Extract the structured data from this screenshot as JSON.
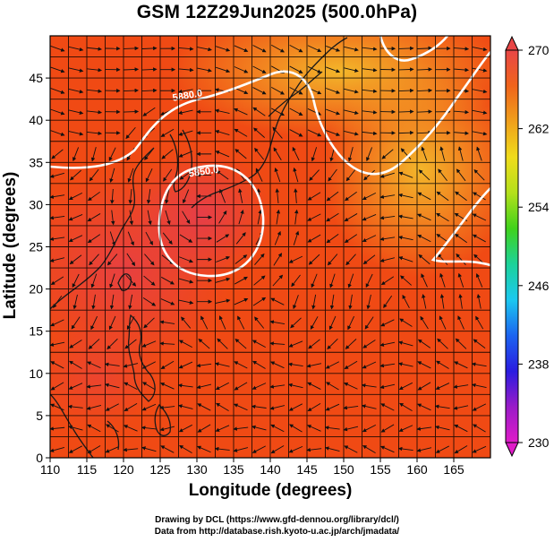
{
  "title": "GSM 12Z29Jun2025 (500.0hPa)",
  "map": {
    "xlabel": "Longitude (degrees)",
    "ylabel": "Latitude  (degrees)",
    "lon_range": [
      110,
      170
    ],
    "lat_range": [
      0,
      50
    ],
    "x_ticks": [
      110,
      115,
      120,
      125,
      130,
      135,
      140,
      145,
      150,
      155,
      160,
      165
    ],
    "y_ticks": [
      0,
      5,
      10,
      15,
      20,
      25,
      30,
      35,
      40,
      45
    ],
    "grid_lon_step": 2.5,
    "grid_lat_step": 2.5,
    "contours": [
      {
        "label": "5850.0",
        "level": 5850,
        "style": "closed low centered near 130E 30N"
      },
      {
        "label": "5880.0",
        "level": 5880,
        "style": "ridge line from 110E 36N across Japan to 170E 47N"
      }
    ],
    "colors": {
      "background_field": "#f04a14",
      "warm_core": "#e83a3a",
      "cool_north": "#f4a020",
      "coast": "#1a1a1a",
      "contour": "#ffffff",
      "streamline": "#111111"
    }
  },
  "colorbar": {
    "min": 230,
    "max": 270,
    "ticks": [
      "270",
      "262",
      "254",
      "246",
      "238",
      "230"
    ],
    "stops": [
      "#e01cc8",
      "#9a1cc8",
      "#2a1ce0",
      "#1c64f0",
      "#1cc8f0",
      "#1cd29a",
      "#40d21c",
      "#b4e01c",
      "#f0dc1c",
      "#f0a01c",
      "#f0641c",
      "#e84646"
    ]
  },
  "credits": {
    "line1": "Drawing by DCL (https://www.gfd-dennou.org/library/dcl/)",
    "line2": "Data from http://database.rish.kyoto-u.ac.jp/arch/jmadata/"
  }
}
